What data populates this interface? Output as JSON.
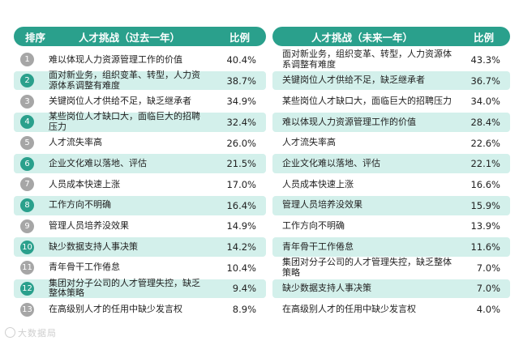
{
  "left": {
    "header": {
      "rank": "排序",
      "title": "人才挑战（过去一年）",
      "ratio": "比例"
    },
    "rows": [
      {
        "num": "1",
        "text": "难以体现人力资源管理工作的价值",
        "pct": "40.4%",
        "shaded": false
      },
      {
        "num": "2",
        "text": "面对新业务，组织变革、转型，人力资源体系调整有难度",
        "pct": "38.7%",
        "shaded": true
      },
      {
        "num": "3",
        "text": "关键岗位人才供给不足，缺乏继承者",
        "pct": "34.9%",
        "shaded": false
      },
      {
        "num": "4",
        "text": "某些岗位人才缺口大，面临巨大的招聘压力",
        "pct": "32.4%",
        "shaded": true
      },
      {
        "num": "5",
        "text": "人才流失率高",
        "pct": "26.0%",
        "shaded": false
      },
      {
        "num": "6",
        "text": "企业文化难以落地、评估",
        "pct": "21.5%",
        "shaded": true
      },
      {
        "num": "7",
        "text": "人员成本快速上涨",
        "pct": "17.0%",
        "shaded": false
      },
      {
        "num": "8",
        "text": "工作方向不明确",
        "pct": "16.4%",
        "shaded": true
      },
      {
        "num": "9",
        "text": "管理人员培养没效果",
        "pct": "14.9%",
        "shaded": false
      },
      {
        "num": "10",
        "text": "缺少数据支持人事决策",
        "pct": "14.2%",
        "shaded": true
      },
      {
        "num": "11",
        "text": "青年骨干工作倦怠",
        "pct": "10.4%",
        "shaded": false
      },
      {
        "num": "12",
        "text": "集团对分子公司的人才管理失控，缺乏整体策略",
        "pct": "9.4%",
        "shaded": true
      },
      {
        "num": "13",
        "text": "在高级别人才的任用中缺少发言权",
        "pct": "8.9%",
        "shaded": false
      }
    ]
  },
  "right": {
    "header": {
      "title": "人才挑战（未来一年）",
      "ratio": "比例"
    },
    "rows": [
      {
        "text": "面对新业务，组织变革、转型，人力资源体系调整有难度",
        "pct": "43.3%",
        "shaded": false
      },
      {
        "text": "关键岗位人才供给不足，缺乏继承者",
        "pct": "36.7%",
        "shaded": true
      },
      {
        "text": "某些岗位人才缺口大，面临巨大的招聘压力",
        "pct": "34.0%",
        "shaded": false
      },
      {
        "text": "难以体现人力资源管理工作的价值",
        "pct": "28.4%",
        "shaded": true
      },
      {
        "text": "人才流失率高",
        "pct": "22.6%",
        "shaded": false
      },
      {
        "text": "企业文化难以落地、评估",
        "pct": "22.1%",
        "shaded": true
      },
      {
        "text": "人员成本快速上涨",
        "pct": "16.6%",
        "shaded": false
      },
      {
        "text": "管理人员培养没效果",
        "pct": "15.9%",
        "shaded": true
      },
      {
        "text": "工作方向不明确",
        "pct": "13.9%",
        "shaded": false
      },
      {
        "text": "青年骨干工作倦怠",
        "pct": "11.6%",
        "shaded": true
      },
      {
        "text": "集团对分子公司的人才管理失控，缺乏整体策略",
        "pct": "7.0%",
        "shaded": false
      },
      {
        "text": "缺少数据支持人事决策",
        "pct": "7.0%",
        "shaded": true
      },
      {
        "text": "在高级别人才的任用中缺少发言权",
        "pct": "4.0%",
        "shaded": false
      }
    ]
  },
  "footer": {
    "source": "大数据局"
  },
  "colors": {
    "accent": "#2aa08c",
    "shade": "#d3f0eb",
    "num_gray": "#a6a6a6"
  }
}
